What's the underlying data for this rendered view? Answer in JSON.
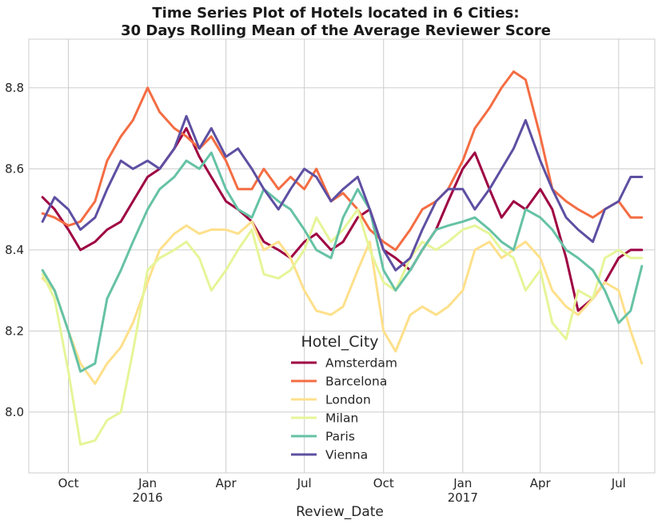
{
  "chart_data": {
    "type": "line",
    "title": [
      "Time Series Plot of Hotels located in 6 Cities:",
      "30 Days Rolling Mean of the Average Reviewer Score"
    ],
    "xlabel": "Review_Date",
    "ylabel": "",
    "xlim": [
      "2015-08-16",
      "2017-08-12"
    ],
    "ylim": [
      7.85,
      8.92
    ],
    "yticks": [
      8.0,
      8.2,
      8.4,
      8.6,
      8.8
    ],
    "xticks": [
      {
        "date": "2015-10-01",
        "label": "Oct",
        "sublabel": ""
      },
      {
        "date": "2016-01-01",
        "label": "Jan",
        "sublabel": "2016"
      },
      {
        "date": "2016-04-01",
        "label": "Apr",
        "sublabel": ""
      },
      {
        "date": "2016-07-01",
        "label": "Jul",
        "sublabel": ""
      },
      {
        "date": "2016-10-01",
        "label": "Oct",
        "sublabel": ""
      },
      {
        "date": "2017-01-01",
        "label": "Jan",
        "sublabel": "2017"
      },
      {
        "date": "2017-04-01",
        "label": "Apr",
        "sublabel": ""
      },
      {
        "date": "2017-07-01",
        "label": "Jul",
        "sublabel": ""
      }
    ],
    "grid": true,
    "legend": {
      "title": "Hotel_City",
      "position": "bottom-center"
    },
    "x": [
      "2015-09-01",
      "2015-09-15",
      "2015-10-01",
      "2015-10-15",
      "2015-11-01",
      "2015-11-15",
      "2015-12-01",
      "2015-12-15",
      "2016-01-01",
      "2016-01-15",
      "2016-02-01",
      "2016-02-15",
      "2016-03-01",
      "2016-03-15",
      "2016-04-01",
      "2016-04-15",
      "2016-05-01",
      "2016-05-15",
      "2016-06-01",
      "2016-06-15",
      "2016-07-01",
      "2016-07-15",
      "2016-08-01",
      "2016-08-15",
      "2016-09-01",
      "2016-09-15",
      "2016-10-01",
      "2016-10-15",
      "2016-11-01",
      "2016-11-15",
      "2016-12-01",
      "2016-12-15",
      "2017-01-01",
      "2017-01-15",
      "2017-02-01",
      "2017-02-15",
      "2017-03-01",
      "2017-03-15",
      "2017-04-01",
      "2017-04-15",
      "2017-05-01",
      "2017-05-15",
      "2017-06-01",
      "2017-06-15",
      "2017-07-01",
      "2017-07-15",
      "2017-07-28"
    ],
    "series": [
      {
        "name": "Amsterdam",
        "color": "#9e0142",
        "values": [
          8.53,
          8.5,
          8.45,
          8.4,
          8.42,
          8.45,
          8.47,
          8.52,
          8.58,
          8.6,
          8.65,
          8.7,
          8.63,
          8.58,
          8.52,
          8.5,
          8.47,
          8.42,
          8.4,
          8.38,
          8.42,
          8.44,
          8.4,
          8.42,
          8.48,
          8.5,
          8.4,
          8.38,
          8.35,
          8.4,
          8.45,
          8.52,
          8.6,
          8.64,
          8.55,
          8.48,
          8.52,
          8.5,
          8.55,
          8.5,
          8.38,
          8.25,
          8.28,
          8.32,
          8.38,
          8.4,
          8.4
        ]
      },
      {
        "name": "Barcelona",
        "color": "#f46d43",
        "values": [
          8.49,
          8.48,
          8.46,
          8.47,
          8.52,
          8.62,
          8.68,
          8.72,
          8.8,
          8.74,
          8.7,
          8.68,
          8.65,
          8.68,
          8.62,
          8.55,
          8.55,
          8.6,
          8.55,
          8.58,
          8.55,
          8.6,
          8.52,
          8.54,
          8.5,
          8.45,
          8.42,
          8.4,
          8.45,
          8.5,
          8.52,
          8.55,
          8.62,
          8.7,
          8.75,
          8.8,
          8.84,
          8.82,
          8.68,
          8.55,
          8.52,
          8.5,
          8.48,
          8.5,
          8.52,
          8.48,
          8.48
        ]
      },
      {
        "name": "London",
        "color": "#fee08b",
        "values": [
          8.33,
          8.3,
          8.2,
          8.12,
          8.07,
          8.12,
          8.16,
          8.22,
          8.32,
          8.4,
          8.44,
          8.46,
          8.44,
          8.45,
          8.45,
          8.44,
          8.47,
          8.4,
          8.42,
          8.38,
          8.3,
          8.25,
          8.24,
          8.26,
          8.35,
          8.42,
          8.2,
          8.15,
          8.24,
          8.26,
          8.24,
          8.26,
          8.3,
          8.4,
          8.42,
          8.38,
          8.4,
          8.42,
          8.38,
          8.3,
          8.26,
          8.24,
          8.28,
          8.32,
          8.3,
          8.2,
          8.12
        ]
      },
      {
        "name": "Milan",
        "color": "#e6f598",
        "values": [
          8.34,
          8.28,
          8.1,
          7.92,
          7.93,
          7.98,
          8.0,
          8.15,
          8.35,
          8.38,
          8.4,
          8.42,
          8.38,
          8.3,
          8.35,
          8.4,
          8.45,
          8.34,
          8.33,
          8.35,
          8.4,
          8.48,
          8.42,
          8.45,
          8.5,
          8.4,
          8.32,
          8.3,
          8.38,
          8.42,
          8.4,
          8.42,
          8.45,
          8.46,
          8.44,
          8.4,
          8.38,
          8.3,
          8.35,
          8.22,
          8.18,
          8.3,
          8.28,
          8.38,
          8.4,
          8.38,
          8.38
        ]
      },
      {
        "name": "Paris",
        "color": "#66c2a5",
        "values": [
          8.35,
          8.3,
          8.2,
          8.1,
          8.12,
          8.28,
          8.35,
          8.42,
          8.5,
          8.55,
          8.58,
          8.62,
          8.6,
          8.64,
          8.55,
          8.5,
          8.48,
          8.55,
          8.52,
          8.5,
          8.45,
          8.4,
          8.38,
          8.48,
          8.55,
          8.5,
          8.35,
          8.3,
          8.35,
          8.4,
          8.45,
          8.46,
          8.47,
          8.48,
          8.45,
          8.42,
          8.4,
          8.5,
          8.48,
          8.45,
          8.4,
          8.38,
          8.35,
          8.3,
          8.22,
          8.25,
          8.36
        ]
      },
      {
        "name": "Vienna",
        "color": "#5e4fa2",
        "values": [
          8.47,
          8.53,
          8.5,
          8.45,
          8.48,
          8.55,
          8.62,
          8.6,
          8.62,
          8.6,
          8.65,
          8.73,
          8.65,
          8.7,
          8.63,
          8.65,
          8.6,
          8.55,
          8.5,
          8.55,
          8.6,
          8.58,
          8.52,
          8.55,
          8.58,
          8.5,
          8.4,
          8.35,
          8.38,
          8.45,
          8.52,
          8.55,
          8.55,
          8.5,
          8.55,
          8.6,
          8.65,
          8.72,
          8.62,
          8.55,
          8.48,
          8.45,
          8.42,
          8.5,
          8.52,
          8.58,
          8.58
        ]
      }
    ]
  }
}
